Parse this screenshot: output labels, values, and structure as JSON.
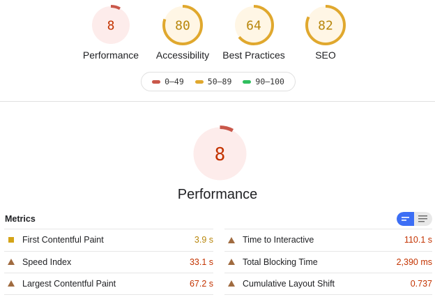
{
  "gauges": [
    {
      "label": "Performance",
      "score": 8,
      "status": "fail"
    },
    {
      "label": "Accessibility",
      "score": 80,
      "status": "average"
    },
    {
      "label": "Best Practices",
      "score": 64,
      "status": "average"
    },
    {
      "label": "SEO",
      "score": 82,
      "status": "average"
    }
  ],
  "legend": [
    {
      "label": "0–49",
      "color": "#c9574a"
    },
    {
      "label": "50–89",
      "color": "#e0a82e"
    },
    {
      "label": "90–100",
      "color": "#2fbf5e"
    }
  ],
  "main": {
    "score": 8,
    "title": "Performance"
  },
  "metrics": {
    "title": "Metrics",
    "view_toggle": [
      "compact-view-icon",
      "list-view-icon"
    ],
    "left": [
      {
        "name": "First Contentful Paint",
        "value": "3.9 s",
        "status": "average"
      },
      {
        "name": "Speed Index",
        "value": "33.1 s",
        "status": "fail"
      },
      {
        "name": "Largest Contentful Paint",
        "value": "67.2 s",
        "status": "fail"
      }
    ],
    "right": [
      {
        "name": "Time to Interactive",
        "value": "110.1 s",
        "status": "fail"
      },
      {
        "name": "Total Blocking Time",
        "value": "2,390 ms",
        "status": "fail"
      },
      {
        "name": "Cumulative Layout Shift",
        "value": "0.737",
        "status": "fail"
      }
    ]
  },
  "colors": {
    "fail_text": "#c33300",
    "average_text": "#b8860b",
    "fail_arc": "#c9574a",
    "average_arc": "#e0a82e",
    "fail_bg": "#fdeceb",
    "average_bg": "#fff6e5"
  }
}
